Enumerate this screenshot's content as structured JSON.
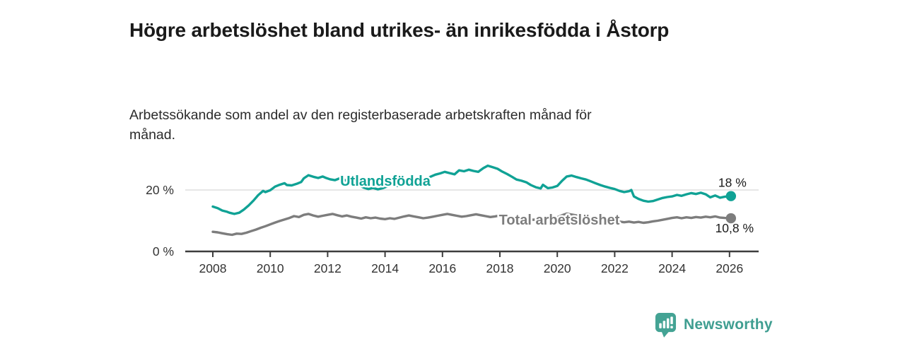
{
  "header": {
    "title": "Högre arbetslöshet bland utrikes- än inrikesfödda i Åstorp",
    "subtitle": "Arbetssökande som andel av den registerbaserade arbetskraften månad för månad."
  },
  "footer": {
    "brand": "Newsworthy",
    "brand_color": "#3f9e91",
    "brand_icon_color": "#44a394"
  },
  "chart_data": {
    "type": "line",
    "title": "Högre arbetslöshet bland utrikes- än inrikesfödda i Åstorp",
    "subtitle": "Arbetssökande som andel av den registerbaserade arbetskraften månad för månad.",
    "unit": "%",
    "grid": "horizontal-20-only",
    "legend_position": "inline-labels",
    "x_axis": {
      "ticks": [
        2008,
        2010,
        2012,
        2014,
        2016,
        2018,
        2020,
        2022,
        2024,
        2026
      ],
      "range": [
        2008,
        2026.2
      ]
    },
    "y_axis": {
      "ticks": [
        {
          "value": 0,
          "label": "0 %"
        },
        {
          "value": 20,
          "label": "20 %"
        }
      ],
      "gridlines": [
        20
      ],
      "range": [
        0,
        30
      ]
    },
    "series": [
      {
        "name": "utlandsfodda",
        "label": "Utlandsfödda",
        "color": "#10a295",
        "end_label": "18 %",
        "end_value": 18.0,
        "points": [
          [
            2008.0,
            14.6
          ],
          [
            2008.17,
            14.1
          ],
          [
            2008.33,
            13.3
          ],
          [
            2008.5,
            12.9
          ],
          [
            2008.58,
            12.6
          ],
          [
            2008.75,
            12.2
          ],
          [
            2008.92,
            12.6
          ],
          [
            2009.08,
            13.6
          ],
          [
            2009.25,
            15.0
          ],
          [
            2009.42,
            16.6
          ],
          [
            2009.58,
            18.3
          ],
          [
            2009.75,
            19.7
          ],
          [
            2009.83,
            19.3
          ],
          [
            2010.0,
            19.9
          ],
          [
            2010.17,
            21.1
          ],
          [
            2010.33,
            21.7
          ],
          [
            2010.5,
            22.2
          ],
          [
            2010.58,
            21.6
          ],
          [
            2010.75,
            21.5
          ],
          [
            2010.92,
            22.0
          ],
          [
            2011.08,
            22.6
          ],
          [
            2011.17,
            23.8
          ],
          [
            2011.33,
            24.8
          ],
          [
            2011.5,
            24.3
          ],
          [
            2011.67,
            23.9
          ],
          [
            2011.83,
            24.4
          ],
          [
            2011.92,
            24.0
          ],
          [
            2012.08,
            23.5
          ],
          [
            2012.25,
            23.2
          ],
          [
            2012.42,
            23.8
          ],
          [
            2012.58,
            23.3
          ],
          [
            2012.75,
            22.6
          ],
          [
            2012.92,
            22.2
          ],
          [
            2013.08,
            21.6
          ],
          [
            2013.25,
            20.8
          ],
          [
            2013.42,
            20.3
          ],
          [
            2013.58,
            20.7
          ],
          [
            2013.75,
            20.2
          ],
          [
            2013.92,
            20.6
          ],
          [
            2014.08,
            21.2
          ],
          [
            2014.25,
            21.6
          ],
          [
            2014.42,
            21.3
          ],
          [
            2014.58,
            21.9
          ],
          [
            2014.75,
            22.4
          ],
          [
            2014.92,
            22.1
          ],
          [
            2015.08,
            22.7
          ],
          [
            2015.25,
            23.5
          ],
          [
            2015.42,
            23.2
          ],
          [
            2015.58,
            24.3
          ],
          [
            2015.75,
            25.0
          ],
          [
            2015.92,
            25.4
          ],
          [
            2016.08,
            25.9
          ],
          [
            2016.25,
            25.5
          ],
          [
            2016.42,
            25.1
          ],
          [
            2016.58,
            26.4
          ],
          [
            2016.75,
            26.1
          ],
          [
            2016.92,
            26.6
          ],
          [
            2017.08,
            26.2
          ],
          [
            2017.25,
            25.9
          ],
          [
            2017.42,
            27.1
          ],
          [
            2017.58,
            27.9
          ],
          [
            2017.75,
            27.4
          ],
          [
            2017.92,
            26.9
          ],
          [
            2018.08,
            26.0
          ],
          [
            2018.25,
            25.2
          ],
          [
            2018.42,
            24.3
          ],
          [
            2018.58,
            23.4
          ],
          [
            2018.75,
            23.0
          ],
          [
            2018.92,
            22.5
          ],
          [
            2019.08,
            21.6
          ],
          [
            2019.25,
            20.9
          ],
          [
            2019.42,
            20.5
          ],
          [
            2019.5,
            21.7
          ],
          [
            2019.67,
            20.6
          ],
          [
            2019.83,
            20.8
          ],
          [
            2020.0,
            21.3
          ],
          [
            2020.17,
            23.0
          ],
          [
            2020.33,
            24.4
          ],
          [
            2020.5,
            24.7
          ],
          [
            2020.67,
            24.2
          ],
          [
            2020.83,
            23.8
          ],
          [
            2021.0,
            23.4
          ],
          [
            2021.17,
            22.8
          ],
          [
            2021.33,
            22.2
          ],
          [
            2021.5,
            21.6
          ],
          [
            2021.67,
            21.1
          ],
          [
            2021.83,
            20.7
          ],
          [
            2022.0,
            20.3
          ],
          [
            2022.17,
            19.7
          ],
          [
            2022.33,
            19.3
          ],
          [
            2022.5,
            19.6
          ],
          [
            2022.58,
            20.0
          ],
          [
            2022.67,
            17.9
          ],
          [
            2022.83,
            17.1
          ],
          [
            2023.0,
            16.5
          ],
          [
            2023.17,
            16.2
          ],
          [
            2023.33,
            16.4
          ],
          [
            2023.5,
            16.9
          ],
          [
            2023.67,
            17.4
          ],
          [
            2023.83,
            17.7
          ],
          [
            2024.0,
            17.9
          ],
          [
            2024.17,
            18.4
          ],
          [
            2024.33,
            18.1
          ],
          [
            2024.5,
            18.6
          ],
          [
            2024.67,
            19.0
          ],
          [
            2024.83,
            18.7
          ],
          [
            2025.0,
            19.1
          ],
          [
            2025.17,
            18.6
          ],
          [
            2025.33,
            17.6
          ],
          [
            2025.5,
            18.2
          ],
          [
            2025.67,
            17.5
          ],
          [
            2025.83,
            17.8
          ],
          [
            2026.05,
            18.0
          ]
        ]
      },
      {
        "name": "total-arbetsloshet",
        "label": "Total arbetslöshet",
        "color": "#7d7d7d",
        "end_label": "10,8 %",
        "end_value": 10.8,
        "points": [
          [
            2008.0,
            6.4
          ],
          [
            2008.17,
            6.2
          ],
          [
            2008.33,
            5.9
          ],
          [
            2008.5,
            5.6
          ],
          [
            2008.67,
            5.4
          ],
          [
            2008.83,
            5.8
          ],
          [
            2009.0,
            5.7
          ],
          [
            2009.17,
            6.1
          ],
          [
            2009.33,
            6.6
          ],
          [
            2009.5,
            7.1
          ],
          [
            2009.67,
            7.7
          ],
          [
            2009.83,
            8.2
          ],
          [
            2010.0,
            8.8
          ],
          [
            2010.17,
            9.4
          ],
          [
            2010.33,
            9.9
          ],
          [
            2010.5,
            10.4
          ],
          [
            2010.67,
            10.9
          ],
          [
            2010.83,
            11.5
          ],
          [
            2011.0,
            11.2
          ],
          [
            2011.17,
            11.9
          ],
          [
            2011.33,
            12.2
          ],
          [
            2011.5,
            11.7
          ],
          [
            2011.67,
            11.3
          ],
          [
            2011.83,
            11.6
          ],
          [
            2012.0,
            11.9
          ],
          [
            2012.17,
            12.2
          ],
          [
            2012.33,
            11.8
          ],
          [
            2012.5,
            11.4
          ],
          [
            2012.67,
            11.7
          ],
          [
            2012.83,
            11.3
          ],
          [
            2013.0,
            11.0
          ],
          [
            2013.17,
            10.7
          ],
          [
            2013.33,
            11.1
          ],
          [
            2013.5,
            10.8
          ],
          [
            2013.67,
            11.0
          ],
          [
            2013.83,
            10.7
          ],
          [
            2014.0,
            10.5
          ],
          [
            2014.17,
            10.8
          ],
          [
            2014.33,
            10.6
          ],
          [
            2014.5,
            11.0
          ],
          [
            2014.67,
            11.4
          ],
          [
            2014.83,
            11.7
          ],
          [
            2015.0,
            11.4
          ],
          [
            2015.17,
            11.1
          ],
          [
            2015.33,
            10.8
          ],
          [
            2015.5,
            11.0
          ],
          [
            2015.67,
            11.3
          ],
          [
            2015.83,
            11.6
          ],
          [
            2016.0,
            11.9
          ],
          [
            2016.17,
            12.2
          ],
          [
            2016.33,
            11.9
          ],
          [
            2016.5,
            11.6
          ],
          [
            2016.67,
            11.3
          ],
          [
            2016.83,
            11.5
          ],
          [
            2017.0,
            11.8
          ],
          [
            2017.17,
            12.1
          ],
          [
            2017.33,
            11.8
          ],
          [
            2017.5,
            11.5
          ],
          [
            2017.67,
            11.2
          ],
          [
            2017.83,
            11.4
          ],
          [
            2018.0,
            11.7
          ],
          [
            2018.17,
            11.4
          ],
          [
            2018.33,
            11.1
          ],
          [
            2018.5,
            10.8
          ],
          [
            2018.67,
            11.0
          ],
          [
            2018.83,
            10.7
          ],
          [
            2019.0,
            10.5
          ],
          [
            2019.17,
            10.3
          ],
          [
            2019.33,
            10.6
          ],
          [
            2019.5,
            10.4
          ],
          [
            2019.67,
            10.7
          ],
          [
            2019.83,
            10.9
          ],
          [
            2020.0,
            11.1
          ],
          [
            2020.17,
            11.8
          ],
          [
            2020.33,
            12.3
          ],
          [
            2020.5,
            12.0
          ],
          [
            2020.67,
            11.7
          ],
          [
            2020.83,
            11.4
          ],
          [
            2021.0,
            11.2
          ],
          [
            2021.17,
            10.9
          ],
          [
            2021.33,
            10.7
          ],
          [
            2021.5,
            10.4
          ],
          [
            2021.67,
            10.2
          ],
          [
            2021.83,
            10.0
          ],
          [
            2022.0,
            9.8
          ],
          [
            2022.17,
            9.7
          ],
          [
            2022.33,
            9.5
          ],
          [
            2022.5,
            9.7
          ],
          [
            2022.67,
            9.4
          ],
          [
            2022.83,
            9.6
          ],
          [
            2023.0,
            9.3
          ],
          [
            2023.17,
            9.5
          ],
          [
            2023.33,
            9.8
          ],
          [
            2023.5,
            10.0
          ],
          [
            2023.67,
            10.3
          ],
          [
            2023.83,
            10.6
          ],
          [
            2024.0,
            10.9
          ],
          [
            2024.17,
            11.1
          ],
          [
            2024.33,
            10.8
          ],
          [
            2024.5,
            11.1
          ],
          [
            2024.67,
            10.9
          ],
          [
            2024.83,
            11.2
          ],
          [
            2025.0,
            11.0
          ],
          [
            2025.17,
            11.3
          ],
          [
            2025.33,
            11.1
          ],
          [
            2025.5,
            11.4
          ],
          [
            2025.67,
            11.0
          ],
          [
            2025.83,
            10.9
          ],
          [
            2026.05,
            10.8
          ]
        ]
      }
    ]
  }
}
